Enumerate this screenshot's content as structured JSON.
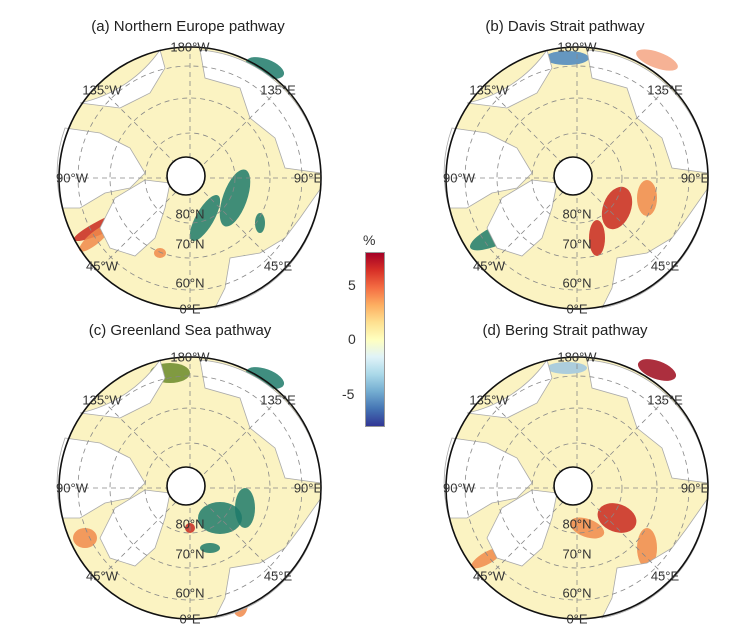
{
  "panels": [
    {
      "title": "(a) Northern Europe pathway"
    },
    {
      "title": "(b) Davis Strait pathway"
    },
    {
      "title": "(c) Greenland Sea pathway"
    },
    {
      "title": "(d) Bering Strait pathway"
    }
  ],
  "labels": {
    "top": "180°W",
    "bottom": "0°E",
    "left": "90°W",
    "right": "90°E",
    "tl": "135°W",
    "tr": "135°E",
    "bl": "45°W",
    "br": "45°E",
    "lat80": "80°N",
    "lat70": "70°N",
    "lat60": "60°N"
  },
  "colorbar": {
    "unit": "%",
    "ticks": [
      "5",
      "0",
      "-5"
    ],
    "range": [
      -8,
      8
    ],
    "colors": [
      "#a50026",
      "#ffffbf",
      "#313695"
    ]
  }
}
